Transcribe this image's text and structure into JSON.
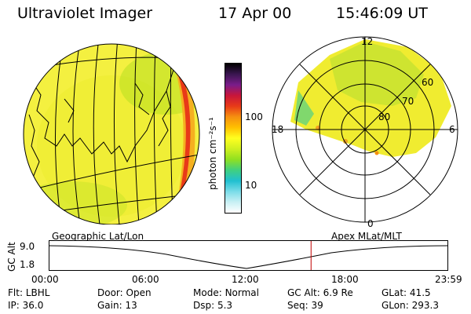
{
  "header": {
    "title": "Ultraviolet Imager",
    "date": "17 Apr 00",
    "time": "15:46:09 UT"
  },
  "colorbar": {
    "unit_label": "photon cm⁻²s⁻¹",
    "ticks": [
      "100",
      "10"
    ],
    "colors": [
      "#000000",
      "#3a1650",
      "#7a1c8a",
      "#c8163a",
      "#e83a18",
      "#f59010",
      "#ffc000",
      "#ffff20",
      "#d0f020",
      "#90e020",
      "#40d080",
      "#20c0d0",
      "#7adce8",
      "#c8f0f4",
      "#ffffff"
    ]
  },
  "panels": {
    "left_label": "Geographic Lat/Lon",
    "right_label": "Apex MLat/MLT",
    "polar_labels": {
      "top": "12",
      "left": "18",
      "right": "6",
      "bottom": "0",
      "lat_60": "60",
      "lat_70": "70",
      "lat_80": "80"
    }
  },
  "timeline": {
    "ylabel": "GC Alt",
    "y_top": "9.0",
    "y_bottom": "1.8",
    "ticks": [
      "00:00",
      "06:00",
      "12:00",
      "18:00",
      "23:59"
    ],
    "current_time_fraction": 0.657
  },
  "info": {
    "row1": [
      {
        "label": "Flt:",
        "value": "LBHL"
      },
      {
        "label": "Door:",
        "value": "Open"
      },
      {
        "label": "Mode:",
        "value": "Normal"
      },
      {
        "label": "GC Alt:",
        "value": "6.9 Re"
      },
      {
        "label": "GLat:",
        "value": "41.5"
      }
    ],
    "row2": [
      {
        "label": "IP:",
        "value": "36.0"
      },
      {
        "label": "Gain:",
        "value": "13"
      },
      {
        "label": "Dsp:",
        "value": "5.3"
      },
      {
        "label": "Seq:",
        "value": "39"
      },
      {
        "label": "GLon:",
        "value": "293.3"
      }
    ]
  }
}
